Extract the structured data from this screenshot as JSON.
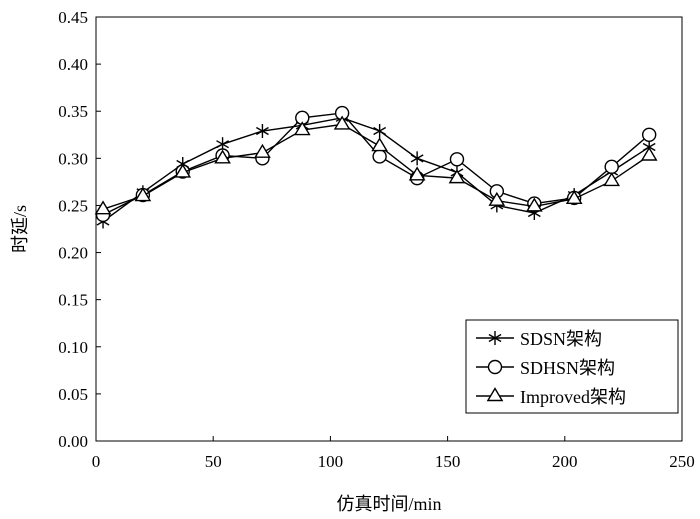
{
  "chart_data": {
    "type": "line",
    "xlabel": "仿真时间/min",
    "ylabel": "时延/s",
    "xlim": [
      0,
      250
    ],
    "ylim": [
      0,
      0.45
    ],
    "xticks": [
      "0",
      "50",
      "100",
      "150",
      "200",
      "250"
    ],
    "yticks": [
      "0.00",
      "0.05",
      "0.10",
      "0.15",
      "0.20",
      "0.25",
      "0.30",
      "0.35",
      "0.40",
      "0.45"
    ],
    "grid": false,
    "legend_position": "bottom-right",
    "series": [
      {
        "name": "SDSN架构",
        "marker": "asterisk",
        "x": [
          3,
          20,
          37,
          54,
          71,
          88,
          105,
          121,
          137,
          154,
          171,
          187,
          204,
          220,
          236
        ],
        "y": [
          0.233,
          0.264,
          0.294,
          0.315,
          0.329,
          0.335,
          0.343,
          0.329,
          0.3,
          0.285,
          0.25,
          0.242,
          0.261,
          0.286,
          0.312
        ]
      },
      {
        "name": "SDHSN架构",
        "marker": "circle",
        "x": [
          3,
          20,
          37,
          54,
          71,
          88,
          105,
          121,
          137,
          154,
          171,
          187,
          204,
          220,
          236
        ],
        "y": [
          0.24,
          0.261,
          0.286,
          0.303,
          0.3,
          0.343,
          0.348,
          0.302,
          0.279,
          0.299,
          0.265,
          0.252,
          0.258,
          0.291,
          0.325
        ]
      },
      {
        "name": "Improved架构",
        "marker": "triangle",
        "x": [
          3,
          20,
          37,
          54,
          71,
          88,
          105,
          121,
          137,
          154,
          171,
          187,
          204,
          220,
          236
        ],
        "y": [
          0.246,
          0.26,
          0.285,
          0.3,
          0.306,
          0.33,
          0.336,
          0.313,
          0.282,
          0.279,
          0.255,
          0.249,
          0.257,
          0.276,
          0.303
        ]
      }
    ]
  }
}
